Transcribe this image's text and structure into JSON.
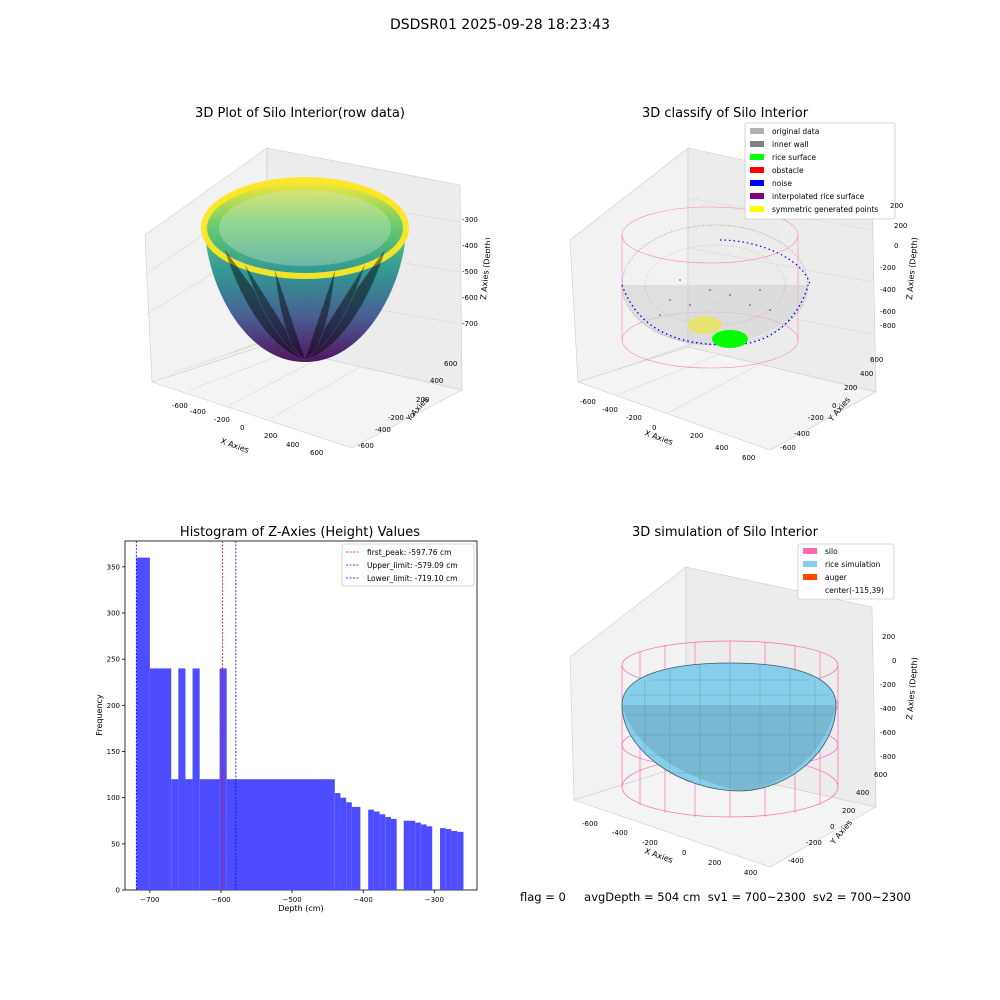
{
  "suptitle": "DSDSR01 2025-09-28 18:23:43",
  "panels": {
    "raw": {
      "title": "3D Plot of Silo Interior(row data)",
      "xlabel": "X Axies",
      "ylabel": "Y Axies",
      "zlabel": "Z Axies (Depth)",
      "xticks": [
        "-600",
        "-400",
        "-200",
        "0",
        "200",
        "400",
        "600"
      ],
      "yticks": [
        "600",
        "400",
        "200",
        "0",
        "-200",
        "-400",
        "-600"
      ],
      "zticks": [
        "-300",
        "-400",
        "-500",
        "-600",
        "-700"
      ]
    },
    "classify": {
      "title": "3D classify of Silo Interior",
      "xlabel": "X Axies",
      "ylabel": "Y Axies",
      "zlabel": "Z Axies (Depth)",
      "xticks": [
        "-600",
        "-400",
        "-200",
        "0",
        "200",
        "400",
        "600"
      ],
      "yticks": [
        "600",
        "400",
        "200",
        "0",
        "-200",
        "-400",
        "-600"
      ],
      "zticks": [
        "200",
        "0",
        "-200",
        "-400",
        "-600",
        "-800"
      ],
      "legend": [
        {
          "label": "original data",
          "color": "#b0b0b0"
        },
        {
          "label": "inner wall",
          "color": "#808080"
        },
        {
          "label": "rice surface",
          "color": "#00ff00"
        },
        {
          "label": "obstacle",
          "color": "#ff0000"
        },
        {
          "label": "noise",
          "color": "#0000ff"
        },
        {
          "label": "interpolated rice surface",
          "color": "#800080"
        },
        {
          "label": "symmetric generated points",
          "color": "#ffff00"
        }
      ]
    },
    "simulation": {
      "title": "3D simulation of Silo Interior",
      "xlabel": "X Axies",
      "ylabel": "Y Axies",
      "zlabel": "Z Axies (Depth)",
      "xticks": [
        "-600",
        "-400",
        "-200",
        "0",
        "200",
        "400"
      ],
      "yticks": [
        "600",
        "400",
        "200",
        "0",
        "-200",
        "-400"
      ],
      "zticks": [
        "200",
        "0",
        "-200",
        "-400",
        "-600",
        "-800"
      ],
      "legend": [
        {
          "label": "silo",
          "color": "#ff69b4"
        },
        {
          "label": "rice simulation",
          "color": "#87ceeb"
        },
        {
          "label": "auger",
          "color": "#ff4500"
        },
        {
          "label": "center(-115,39)",
          "color": "none"
        }
      ]
    }
  },
  "chart_data": {
    "type": "bar",
    "title": "Histogram of Z-Axies (Height) Values",
    "xlabel": "Depth (cm)",
    "ylabel": "Frequency",
    "xlim": [
      -735,
      -240
    ],
    "ylim": [
      0,
      378
    ],
    "xticks": [
      -700,
      -600,
      -500,
      -400,
      -300
    ],
    "yticks": [
      0,
      50,
      100,
      150,
      200,
      250,
      300,
      350
    ],
    "bar_color": "#4d4dff",
    "bins": [
      {
        "x0": -719,
        "x1": -700,
        "v": 360
      },
      {
        "x0": -700,
        "x1": -670,
        "v": 240
      },
      {
        "x0": -670,
        "x1": -660,
        "v": 120
      },
      {
        "x0": -660,
        "x1": -650,
        "v": 240
      },
      {
        "x0": -650,
        "x1": -640,
        "v": 120
      },
      {
        "x0": -640,
        "x1": -630,
        "v": 240
      },
      {
        "x0": -630,
        "x1": -602,
        "v": 120
      },
      {
        "x0": -602,
        "x1": -592,
        "v": 240
      },
      {
        "x0": -592,
        "x1": -440,
        "v": 120
      },
      {
        "x0": -440,
        "x1": -432,
        "v": 105
      },
      {
        "x0": -432,
        "x1": -424,
        "v": 100
      },
      {
        "x0": -424,
        "x1": -416,
        "v": 95
      },
      {
        "x0": -416,
        "x1": -404,
        "v": 90
      },
      {
        "x0": -393,
        "x1": -385,
        "v": 87
      },
      {
        "x0": -385,
        "x1": -377,
        "v": 85
      },
      {
        "x0": -377,
        "x1": -369,
        "v": 82
      },
      {
        "x0": -369,
        "x1": -361,
        "v": 79
      },
      {
        "x0": -361,
        "x1": -353,
        "v": 77
      },
      {
        "x0": -343,
        "x1": -335,
        "v": 75
      },
      {
        "x0": -335,
        "x1": -327,
        "v": 75
      },
      {
        "x0": -327,
        "x1": -319,
        "v": 73
      },
      {
        "x0": -319,
        "x1": -311,
        "v": 71
      },
      {
        "x0": -311,
        "x1": -303,
        "v": 69
      },
      {
        "x0": -292,
        "x1": -284,
        "v": 67
      },
      {
        "x0": -284,
        "x1": -276,
        "v": 66
      },
      {
        "x0": -276,
        "x1": -268,
        "v": 64
      },
      {
        "x0": -268,
        "x1": -259,
        "v": 63
      }
    ],
    "vlines": [
      {
        "x": -597.76,
        "color": "#ff0000",
        "label": "first_peak: -597.76 cm"
      },
      {
        "x": -579.09,
        "color": "#0000ff",
        "label": "Upper_limit: -579.09 cm"
      },
      {
        "x": -719.1,
        "color": "#0000ff",
        "label": "Lower_limit: -719.10 cm"
      }
    ]
  },
  "footer": {
    "flag": "flag = 0",
    "avg": "avgDepth = 504 cm",
    "sv1": "sv1 = 700~2300",
    "sv2": "sv2 = 700~2300"
  }
}
